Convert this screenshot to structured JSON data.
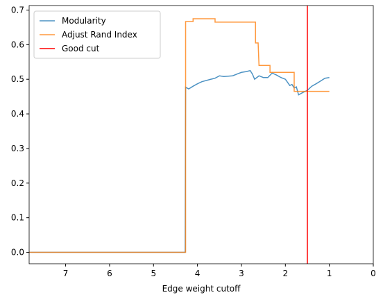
{
  "chart_data": {
    "type": "line",
    "xlabel": "Edge weight cutoff",
    "xlim": [
      7.83,
      0
    ],
    "xticks": [
      7,
      6,
      5,
      4,
      3,
      2,
      1,
      0
    ],
    "ylim": [
      -0.033,
      0.713
    ],
    "yticks": [
      {
        "value": 0,
        "label": "0.0"
      },
      {
        "value": 0.1,
        "label": "0.1"
      },
      {
        "value": 0.2,
        "label": "0.2"
      },
      {
        "value": 0.3,
        "label": "0.3"
      },
      {
        "value": 0.4,
        "label": "0.4"
      },
      {
        "value": 0.5,
        "label": "0.5"
      },
      {
        "value": 0.6,
        "label": "0.6"
      },
      {
        "value": 0.7,
        "label": "0.7"
      }
    ],
    "legend": "upper left",
    "series": [
      {
        "name": "Modularity",
        "color": "#1f77b4",
        "x": [
          7.83,
          4.28,
          4.27,
          4.2,
          4.1,
          4.0,
          3.9,
          3.7,
          3.6,
          3.5,
          3.4,
          3.2,
          3.1,
          3.0,
          2.9,
          2.8,
          2.75,
          2.7,
          2.6,
          2.5,
          2.4,
          2.3,
          2.2,
          2.1,
          2.0,
          1.9,
          1.85,
          1.8,
          1.75,
          1.7,
          1.6,
          1.5,
          1.4,
          1.3,
          1.2,
          1.1,
          1.0
        ],
        "values": [
          0,
          0,
          0.477,
          0.472,
          0.48,
          0.487,
          0.493,
          0.5,
          0.503,
          0.51,
          0.508,
          0.51,
          0.515,
          0.52,
          0.522,
          0.525,
          0.515,
          0.5,
          0.51,
          0.505,
          0.505,
          0.518,
          0.512,
          0.505,
          0.5,
          0.482,
          0.485,
          0.475,
          0.478,
          0.455,
          0.462,
          0.468,
          0.48,
          0.487,
          0.495,
          0.503,
          0.505
        ]
      },
      {
        "name": "Adjust Rand Index",
        "color": "#ff7f0e",
        "x": [
          7.83,
          4.27,
          4.27,
          4.1,
          4.1,
          3.6,
          3.6,
          2.68,
          2.68,
          2.62,
          2.6,
          2.35,
          2.35,
          1.8,
          1.8,
          1.0
        ],
        "values": [
          0,
          0,
          0.667,
          0.667,
          0.675,
          0.675,
          0.665,
          0.665,
          0.605,
          0.605,
          0.54,
          0.54,
          0.52,
          0.52,
          0.465,
          0.465
        ]
      },
      {
        "name": "Good cut",
        "color": "#ff0000",
        "vline": 1.5
      }
    ]
  }
}
